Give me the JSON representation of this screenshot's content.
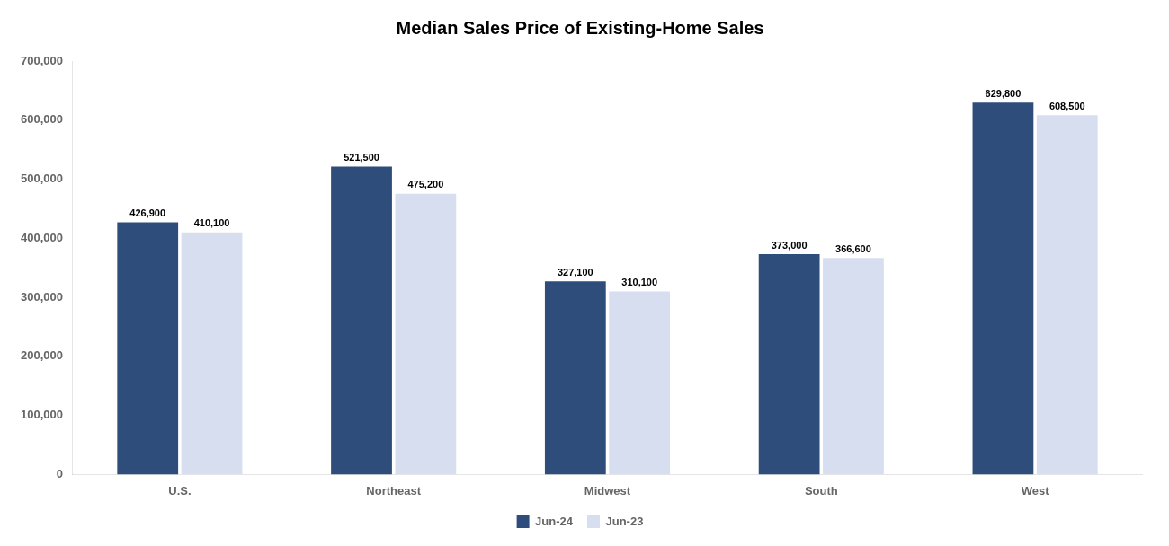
{
  "chart_data": {
    "type": "bar",
    "title": "Median Sales Price of Existing-Home Sales",
    "categories": [
      "U.S.",
      "Northeast",
      "Midwest",
      "South",
      "West"
    ],
    "series": [
      {
        "name": "Jun-24",
        "color": "#2E4D7B",
        "values": [
          426900,
          521500,
          327100,
          373000,
          629800
        ],
        "value_labels": [
          "426,900",
          "521,500",
          "327,100",
          "373,000",
          "629,800"
        ]
      },
      {
        "name": "Jun-23",
        "color": "#D6DEF0",
        "values": [
          410100,
          475200,
          310100,
          366600,
          608500
        ],
        "value_labels": [
          "410,100",
          "475,200",
          "310,100",
          "366,600",
          "608,500"
        ]
      }
    ],
    "ylim": [
      0,
      700000
    ],
    "yticks": [
      0,
      {
        "value": 100000,
        "label": "100,000"
      },
      {
        "value": 200000,
        "label": "200,000"
      },
      {
        "value": 300000,
        "label": "300,000"
      },
      {
        "value": 400000,
        "label": "400,000"
      },
      {
        "value": 500000,
        "label": "500,000"
      },
      {
        "value": 600000,
        "label": "600,000"
      },
      {
        "value": 700000,
        "label": "700,000"
      }
    ],
    "grid": false,
    "legend": "bottom",
    "data_labels": true
  }
}
